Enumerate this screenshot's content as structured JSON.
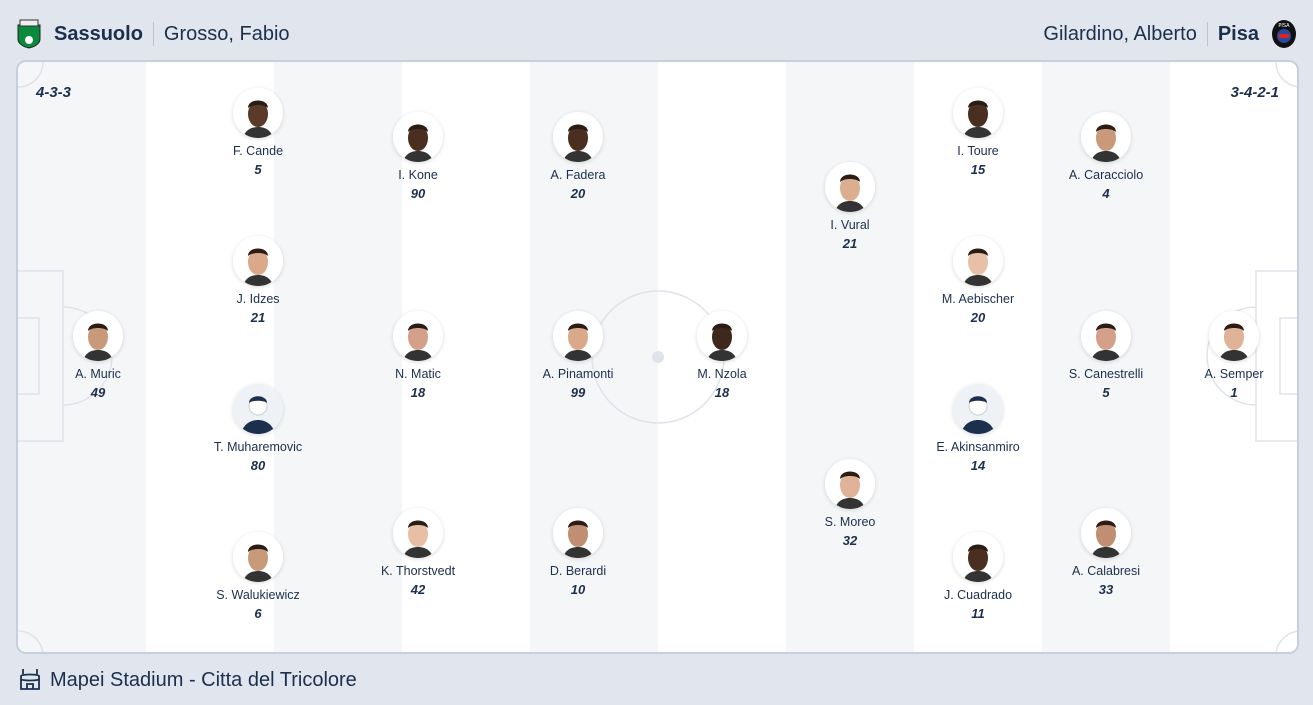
{
  "home": {
    "team": "Sassuolo",
    "coach": "Grosso, Fabio",
    "formation": "4-3-3",
    "logo_color": "#0a8a3a",
    "players": [
      {
        "name": "A. Muric",
        "number": "49",
        "skin": "#c99a7a"
      },
      {
        "name": "F. Cande",
        "number": "5",
        "skin": "#5a3a28"
      },
      {
        "name": "J. Idzes",
        "number": "21",
        "skin": "#d9a98a"
      },
      {
        "name": "T. Muharemovic",
        "number": "80",
        "skin": "placeholder"
      },
      {
        "name": "S. Walukiewicz",
        "number": "6",
        "skin": "#c99a7a"
      },
      {
        "name": "I. Kone",
        "number": "90",
        "skin": "#4a2e20"
      },
      {
        "name": "N. Matic",
        "number": "18",
        "skin": "#d4a08a"
      },
      {
        "name": "K. Thorstvedt",
        "number": "42",
        "skin": "#e8bfa5"
      },
      {
        "name": "A. Fadera",
        "number": "20",
        "skin": "#4a2e20"
      },
      {
        "name": "A. Pinamonti",
        "number": "99",
        "skin": "#d9a98a"
      },
      {
        "name": "D. Berardi",
        "number": "10",
        "skin": "#c08e70"
      }
    ]
  },
  "away": {
    "team": "Pisa",
    "coach": "Gilardino, Alberto",
    "formation": "3-4-2-1",
    "logo_color": "#1a2a5a",
    "players": [
      {
        "name": "M. Nzola",
        "number": "18",
        "skin": "#3e281c"
      },
      {
        "name": "I. Vural",
        "number": "21",
        "skin": "#dcae90"
      },
      {
        "name": "S. Moreo",
        "number": "32",
        "skin": "#e0b298"
      },
      {
        "name": "I. Toure",
        "number": "15",
        "skin": "#4a2e20"
      },
      {
        "name": "M. Aebischer",
        "number": "20",
        "skin": "#e8c0a8"
      },
      {
        "name": "E. Akinsanmiro",
        "number": "14",
        "skin": "placeholder"
      },
      {
        "name": "J. Cuadrado",
        "number": "11",
        "skin": "#4a2e20"
      },
      {
        "name": "A. Caracciolo",
        "number": "4",
        "skin": "#c99a7a"
      },
      {
        "name": "S. Canestrelli",
        "number": "5",
        "skin": "#d4a08a"
      },
      {
        "name": "A. Calabresi",
        "number": "33",
        "skin": "#c08e70"
      },
      {
        "name": "A. Semper",
        "number": "1",
        "skin": "#e0b298"
      }
    ]
  },
  "venue": {
    "name": "Mapei Stadium - Citta del Tricolore",
    "icon": "stadium-icon"
  },
  "colors": {
    "pitch_stripe": "#f4f6f8",
    "text": "#1c2f4d",
    "line": "#dfe4ea"
  }
}
